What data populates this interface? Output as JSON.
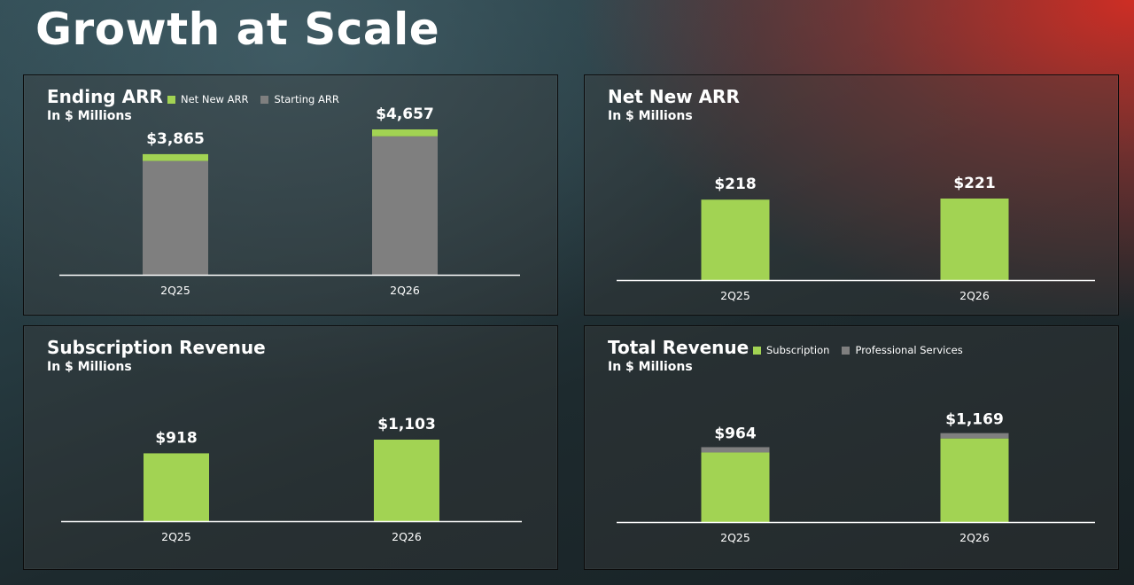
{
  "page": {
    "title": "Growth at Scale"
  },
  "colors": {
    "green": "#a2d353",
    "gray": "#7f7f7f",
    "axis": "#ffffff"
  },
  "chart_data": [
    {
      "id": "ending-arr",
      "type": "bar",
      "stacked": true,
      "title": "Ending ARR",
      "subtitle": "In $ Millions",
      "categories": [
        "2Q25",
        "2Q26"
      ],
      "series": [
        {
          "name": "Starting ARR",
          "color": "#7f7f7f",
          "values": [
            3647,
            4436
          ]
        },
        {
          "name": "Net New ARR",
          "color": "#a2d353",
          "values": [
            218,
            221
          ]
        }
      ],
      "totals": [
        3865,
        4657
      ],
      "total_labels": [
        "$3,865",
        "$4,657"
      ],
      "legend": [
        "Net New ARR",
        "Starting ARR"
      ],
      "legend_position": "top"
    },
    {
      "id": "net-new-arr",
      "type": "bar",
      "stacked": false,
      "title": "Net New ARR",
      "subtitle": "In $ Millions",
      "categories": [
        "2Q25",
        "2Q26"
      ],
      "series": [
        {
          "name": "",
          "color": "#a2d353",
          "values": [
            218,
            221
          ]
        }
      ],
      "totals": [
        218,
        221
      ],
      "total_labels": [
        "$218",
        "$221"
      ],
      "legend": []
    },
    {
      "id": "subscription-revenue",
      "type": "bar",
      "stacked": false,
      "title": "Subscription Revenue",
      "subtitle": "In $ Millions",
      "categories": [
        "2Q25",
        "2Q26"
      ],
      "series": [
        {
          "name": "",
          "color": "#a2d353",
          "values": [
            918,
            1103
          ]
        }
      ],
      "totals": [
        918,
        1103
      ],
      "total_labels": [
        "$918",
        "$1,103"
      ],
      "legend": []
    },
    {
      "id": "total-revenue",
      "type": "bar",
      "stacked": true,
      "title": "Total Revenue",
      "subtitle": "In $ Millions",
      "categories": [
        "2Q25",
        "2Q26"
      ],
      "series": [
        {
          "name": "Subscription",
          "color": "#a2d353",
          "values": [
            918,
            1103
          ]
        },
        {
          "name": "Professional Services",
          "color": "#7f7f7f",
          "values": [
            46,
            66
          ]
        }
      ],
      "totals": [
        964,
        1169
      ],
      "total_labels": [
        "$964",
        "$1,169"
      ],
      "legend": [
        "Subscription",
        "Professional Services"
      ],
      "legend_position": "top"
    }
  ]
}
